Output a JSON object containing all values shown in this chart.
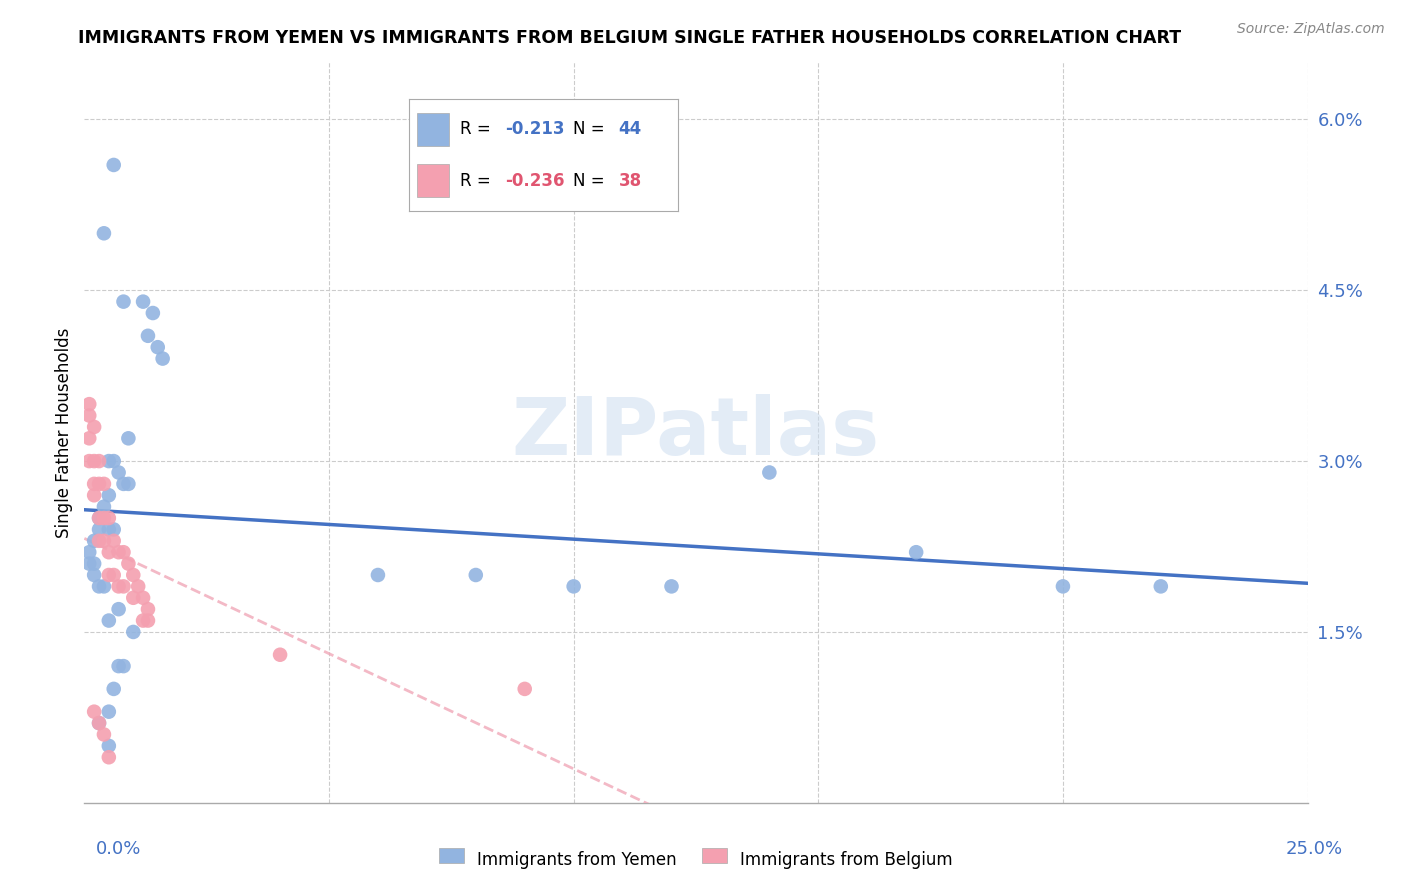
{
  "title": "IMMIGRANTS FROM YEMEN VS IMMIGRANTS FROM BELGIUM SINGLE FATHER HOUSEHOLDS CORRELATION CHART",
  "source": "Source: ZipAtlas.com",
  "ylabel": "Single Father Households",
  "xlim": [
    0.0,
    0.25
  ],
  "ylim": [
    0.0,
    0.065
  ],
  "legend_r_yemen": "-0.213",
  "legend_n_yemen": "44",
  "legend_r_belgium": "-0.236",
  "legend_n_belgium": "38",
  "color_yemen": "#92b4e0",
  "color_belgium": "#f4a0b0",
  "trendline_yemen_color": "#4472c4",
  "trendline_belgium_color": "#f0a8b8",
  "watermark": "ZIPatlas",
  "yemen_x": [
    0.006,
    0.008,
    0.004,
    0.012,
    0.014,
    0.013,
    0.015,
    0.016,
    0.005,
    0.006,
    0.007,
    0.008,
    0.009,
    0.005,
    0.004,
    0.003,
    0.005,
    0.006,
    0.003,
    0.002,
    0.001,
    0.001,
    0.002,
    0.002,
    0.003,
    0.004,
    0.06,
    0.08,
    0.1,
    0.12,
    0.14,
    0.17,
    0.2,
    0.22,
    0.005,
    0.007,
    0.007,
    0.006,
    0.005,
    0.005,
    0.003,
    0.008,
    0.009,
    0.01
  ],
  "yemen_y": [
    0.056,
    0.044,
    0.05,
    0.044,
    0.043,
    0.041,
    0.04,
    0.039,
    0.03,
    0.03,
    0.029,
    0.028,
    0.028,
    0.027,
    0.026,
    0.025,
    0.024,
    0.024,
    0.024,
    0.023,
    0.022,
    0.021,
    0.021,
    0.02,
    0.019,
    0.019,
    0.02,
    0.02,
    0.019,
    0.019,
    0.029,
    0.022,
    0.019,
    0.019,
    0.016,
    0.017,
    0.012,
    0.01,
    0.008,
    0.005,
    0.007,
    0.012,
    0.032,
    0.015
  ],
  "belgium_x": [
    0.001,
    0.001,
    0.001,
    0.001,
    0.002,
    0.002,
    0.002,
    0.002,
    0.003,
    0.003,
    0.003,
    0.003,
    0.004,
    0.004,
    0.004,
    0.005,
    0.005,
    0.005,
    0.006,
    0.006,
    0.007,
    0.007,
    0.008,
    0.008,
    0.009,
    0.01,
    0.01,
    0.011,
    0.012,
    0.012,
    0.013,
    0.013,
    0.04,
    0.09,
    0.002,
    0.003,
    0.004,
    0.005
  ],
  "belgium_y": [
    0.035,
    0.034,
    0.032,
    0.03,
    0.033,
    0.03,
    0.028,
    0.027,
    0.03,
    0.028,
    0.025,
    0.023,
    0.028,
    0.025,
    0.023,
    0.025,
    0.022,
    0.02,
    0.023,
    0.02,
    0.022,
    0.019,
    0.022,
    0.019,
    0.021,
    0.02,
    0.018,
    0.019,
    0.018,
    0.016,
    0.017,
    0.016,
    0.013,
    0.01,
    0.008,
    0.007,
    0.006,
    0.004
  ]
}
